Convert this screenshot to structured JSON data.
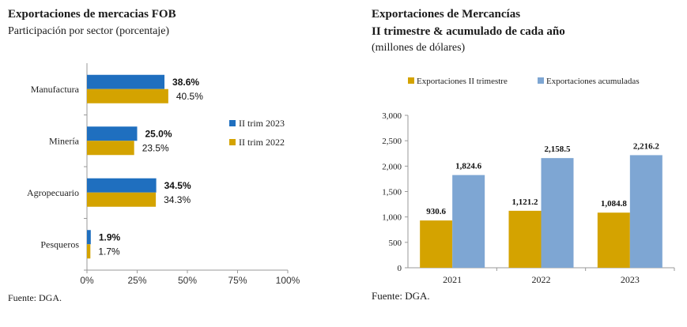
{
  "colors": {
    "blue": "#1f6fbf",
    "gold": "#d4a300",
    "lightblue": "#7ea6d3",
    "axis": "#999999"
  },
  "left": {
    "title": "Exportaciones de mercacias FOB",
    "subtitle": "Participación por sector (porcentaje)",
    "source": "Fuente: DGA."
  },
  "right": {
    "title_line1": "Exportaciones de Mercancías",
    "title_line2": "II trimestre & acumulado de cada año",
    "subtitle": "(millones de dólares)",
    "source": "Fuente: DGA."
  },
  "chart_data": [
    {
      "type": "bar",
      "orientation": "horizontal",
      "categories": [
        "Manufactura",
        "Minería",
        "Agropecuario",
        "Pesqueros"
      ],
      "series": [
        {
          "name": "II trim 2023",
          "values": [
            38.6,
            25.0,
            34.5,
            1.9
          ],
          "labels": [
            "38.6%",
            "25.0%",
            "34.5%",
            "1.9%"
          ]
        },
        {
          "name": "II trim 2022",
          "values": [
            40.5,
            23.5,
            34.3,
            1.7
          ],
          "labels": [
            "40.5%",
            "23.5%",
            "34.3%",
            "1.7%"
          ]
        }
      ],
      "xlim": [
        0,
        100
      ],
      "ticks": [
        "0%",
        "25%",
        "50%",
        "75%",
        "100%"
      ],
      "legend_position": "right",
      "grid": false
    },
    {
      "type": "bar",
      "orientation": "vertical",
      "categories": [
        "2021",
        "2022",
        "2023"
      ],
      "series": [
        {
          "name": "Exportaciones II trimestre",
          "values": [
            930.6,
            1121.2,
            1084.8
          ],
          "labels": [
            "930.6",
            "1,121.2",
            "1,084.8"
          ]
        },
        {
          "name": "Exportaciones acumuladas",
          "values": [
            1824.6,
            2158.5,
            2216.2
          ],
          "labels": [
            "1,824.6",
            "2,158.5",
            "2,216.2"
          ]
        }
      ],
      "ylim": [
        0,
        3000
      ],
      "ticks": [
        "0",
        "500",
        "1,000",
        "1,500",
        "2,000",
        "2,500",
        "3,000"
      ],
      "legend_position": "top",
      "grid": false
    }
  ]
}
